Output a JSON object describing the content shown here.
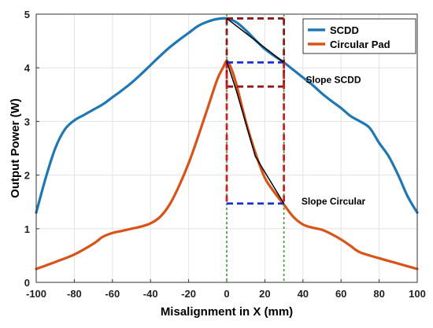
{
  "chart_data": {
    "type": "line",
    "xlabel": "Misalignment in X (mm)",
    "ylabel": "Output Power (W)",
    "xlim": [
      -100,
      100
    ],
    "ylim": [
      0,
      5
    ],
    "xticks": [
      -100,
      -80,
      -60,
      -40,
      -20,
      0,
      20,
      40,
      60,
      80,
      100
    ],
    "yticks": [
      0,
      1,
      2,
      3,
      4,
      5
    ],
    "grid": true,
    "legend_position": "top-right",
    "series": [
      {
        "name": "SCDD",
        "color": "#1f77b4",
        "x": [
          -100,
          -95,
          -90,
          -85,
          -80,
          -75,
          -70,
          -65,
          -60,
          -55,
          -50,
          -45,
          -40,
          -35,
          -30,
          -25,
          -20,
          -15,
          -10,
          -5,
          0,
          5,
          10,
          15,
          20,
          25,
          30,
          35,
          40,
          45,
          50,
          55,
          60,
          65,
          70,
          75,
          80,
          85,
          90,
          95,
          100
        ],
        "y": [
          1.3,
          1.95,
          2.5,
          2.85,
          3.02,
          3.12,
          3.22,
          3.32,
          3.45,
          3.58,
          3.72,
          3.88,
          4.05,
          4.22,
          4.38,
          4.52,
          4.65,
          4.78,
          4.86,
          4.91,
          4.92,
          4.85,
          4.7,
          4.52,
          4.35,
          4.22,
          4.1,
          3.96,
          3.82,
          3.68,
          3.52,
          3.38,
          3.25,
          3.1,
          3.0,
          2.88,
          2.6,
          2.35,
          2.0,
          1.6,
          1.3
        ]
      },
      {
        "name": "Circular Pad",
        "color": "#d95319",
        "x": [
          -100,
          -90,
          -80,
          -70,
          -65,
          -60,
          -55,
          -50,
          -45,
          -40,
          -35,
          -30,
          -25,
          -20,
          -15,
          -10,
          -5,
          -2,
          0,
          2,
          5,
          10,
          15,
          20,
          25,
          30,
          35,
          40,
          45,
          50,
          55,
          60,
          65,
          70,
          80,
          90,
          100
        ],
        "y": [
          0.25,
          0.38,
          0.52,
          0.72,
          0.85,
          0.92,
          0.96,
          1.0,
          1.04,
          1.1,
          1.22,
          1.45,
          1.8,
          2.22,
          2.72,
          3.25,
          3.78,
          4.0,
          4.12,
          4.02,
          3.7,
          3.0,
          2.42,
          1.95,
          1.68,
          1.45,
          1.22,
          1.08,
          1.02,
          0.98,
          0.9,
          0.8,
          0.68,
          0.56,
          0.45,
          0.35,
          0.25
        ]
      }
    ],
    "annotations": [
      {
        "text": "Slope SCDD",
        "x": 56,
        "y": 3.72
      },
      {
        "text": "Slope Circular",
        "x": 56,
        "y": 1.45
      }
    ],
    "vertical_lines": [
      {
        "x": 0,
        "color": "#3a9a2e",
        "style": "dotted"
      },
      {
        "x": 30,
        "color": "#3a9a2e",
        "style": "dotted"
      }
    ],
    "reference_segments": [
      {
        "x1": 0,
        "y1": 4.92,
        "x2": 30,
        "y2": 4.92,
        "color": "#8b1a1a",
        "dash": true
      },
      {
        "x1": 0,
        "y1": 4.1,
        "x2": 30,
        "y2": 4.1,
        "color": "#1c2fd0",
        "dash": true
      },
      {
        "x1": 0,
        "y1": 3.65,
        "x2": 30,
        "y2": 3.65,
        "color": "#8b1a1a",
        "dash": true
      },
      {
        "x1": 0,
        "y1": 1.47,
        "x2": 30,
        "y2": 1.47,
        "color": "#1c2fd0",
        "dash": true
      },
      {
        "x1": 0,
        "y1": 4.92,
        "x2": 0,
        "y2": 3.65,
        "color": "#8b1a1a",
        "dash": true
      },
      {
        "x1": 30,
        "y1": 4.92,
        "x2": 30,
        "y2": 3.65,
        "color": "#8b1a1a",
        "dash": true
      },
      {
        "x1": 0,
        "y1": 4.1,
        "x2": 0,
        "y2": 1.47,
        "color": "#cc1f1f",
        "dash": true
      },
      {
        "x1": 30,
        "y1": 4.1,
        "x2": 30,
        "y2": 1.47,
        "color": "#cc1f1f",
        "dash": true
      }
    ],
    "slope_lines": [
      {
        "x1": 0,
        "y1": 4.92,
        "x2": 30,
        "y2": 4.1,
        "color": "#000000"
      },
      {
        "x1": 0,
        "y1": 4.12,
        "x2": 5,
        "y2": 3.58,
        "color": "#000000"
      },
      {
        "x1": 5,
        "y1": 3.58,
        "x2": 15,
        "y2": 2.35,
        "color": "#000000"
      },
      {
        "x1": 15,
        "y1": 2.35,
        "x2": 30,
        "y2": 1.47,
        "color": "#000000"
      }
    ]
  }
}
